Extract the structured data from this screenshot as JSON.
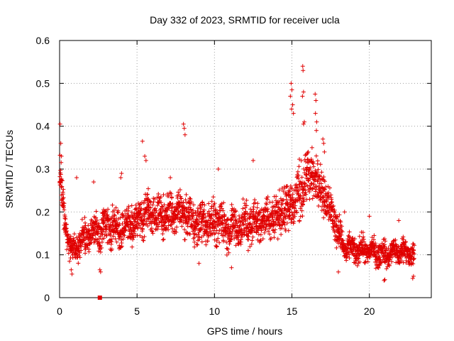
{
  "chart_data": {
    "type": "scatter",
    "title": "Day 332 of 2023, SRMTID for receiver ucla",
    "xlabel": "GPS time / hours",
    "ylabel": "SRMTID / TECUs",
    "xlim": [
      0,
      24
    ],
    "ylim": [
      0,
      0.6
    ],
    "grid": true,
    "x_ticks": [
      0,
      5,
      10,
      15,
      20
    ],
    "x_tick_labels": [
      "0",
      "5",
      "10",
      "15",
      "20"
    ],
    "y_ticks": [
      0,
      0.1,
      0.2,
      0.3,
      0.4,
      0.5,
      0.6
    ],
    "y_tick_labels": [
      "0",
      "0.1",
      "0.2",
      "0.3",
      "0.4",
      "0.5",
      "0.6"
    ],
    "marker": "+",
    "color": "#e00000",
    "time_range": [
      0,
      22.9
    ],
    "envelope": {
      "hours": [
        0,
        0.15,
        0.4,
        0.8,
        1.5,
        2.0,
        3.0,
        4.0,
        5.0,
        5.5,
        6.5,
        8.0,
        9.0,
        10.0,
        11.0,
        12.0,
        13.0,
        14.0,
        14.8,
        15.2,
        15.7,
        16.3,
        17.0,
        17.7,
        18.3,
        19.0,
        20.0,
        21.0,
        22.0,
        22.9
      ],
      "center": [
        0.28,
        0.24,
        0.16,
        0.11,
        0.13,
        0.15,
        0.17,
        0.16,
        0.18,
        0.2,
        0.19,
        0.2,
        0.17,
        0.18,
        0.16,
        0.17,
        0.18,
        0.19,
        0.22,
        0.22,
        0.26,
        0.29,
        0.25,
        0.19,
        0.12,
        0.11,
        0.11,
        0.1,
        0.11,
        0.1
      ],
      "spread": [
        0.07,
        0.06,
        0.04,
        0.03,
        0.04,
        0.04,
        0.05,
        0.04,
        0.05,
        0.05,
        0.05,
        0.05,
        0.05,
        0.05,
        0.05,
        0.05,
        0.05,
        0.05,
        0.07,
        0.07,
        0.07,
        0.06,
        0.05,
        0.05,
        0.03,
        0.03,
        0.03,
        0.03,
        0.03,
        0.03
      ]
    },
    "peaks": [
      {
        "x": 0.03,
        "y": 0.405
      },
      {
        "x": 0.08,
        "y": 0.36
      },
      {
        "x": 0.12,
        "y": 0.33
      },
      {
        "x": 5.35,
        "y": 0.365
      },
      {
        "x": 5.5,
        "y": 0.33
      },
      {
        "x": 5.58,
        "y": 0.32
      },
      {
        "x": 8.0,
        "y": 0.405
      },
      {
        "x": 8.05,
        "y": 0.395
      },
      {
        "x": 8.1,
        "y": 0.38
      },
      {
        "x": 14.95,
        "y": 0.5
      },
      {
        "x": 15.0,
        "y": 0.485
      },
      {
        "x": 14.9,
        "y": 0.47
      },
      {
        "x": 15.05,
        "y": 0.45
      },
      {
        "x": 14.98,
        "y": 0.44
      },
      {
        "x": 15.1,
        "y": 0.43
      },
      {
        "x": 15.7,
        "y": 0.54
      },
      {
        "x": 15.72,
        "y": 0.53
      },
      {
        "x": 15.75,
        "y": 0.48
      },
      {
        "x": 15.68,
        "y": 0.47
      },
      {
        "x": 15.8,
        "y": 0.41
      },
      {
        "x": 15.75,
        "y": 0.405
      },
      {
        "x": 16.05,
        "y": 0.34
      },
      {
        "x": 16.3,
        "y": 0.35
      },
      {
        "x": 16.5,
        "y": 0.475
      },
      {
        "x": 16.55,
        "y": 0.46
      },
      {
        "x": 16.52,
        "y": 0.43
      },
      {
        "x": 16.6,
        "y": 0.41
      },
      {
        "x": 16.58,
        "y": 0.39
      },
      {
        "x": 17.0,
        "y": 0.37
      },
      {
        "x": 17.05,
        "y": 0.36
      },
      {
        "x": 17.1,
        "y": 0.34
      },
      {
        "x": 14.7,
        "y": 0.26
      },
      {
        "x": 14.8,
        "y": 0.25
      },
      {
        "x": 4.0,
        "y": 0.29
      },
      {
        "x": 3.95,
        "y": 0.28
      },
      {
        "x": 1.1,
        "y": 0.28
      },
      {
        "x": 2.2,
        "y": 0.27
      },
      {
        "x": 7.15,
        "y": 0.28
      },
      {
        "x": 10.25,
        "y": 0.3
      },
      {
        "x": 12.5,
        "y": 0.32
      },
      {
        "x": 18.4,
        "y": 0.2
      },
      {
        "x": 20.0,
        "y": 0.19
      },
      {
        "x": 21.9,
        "y": 0.18
      }
    ],
    "lows": [
      {
        "x": 0.8,
        "y": 0.055
      },
      {
        "x": 0.75,
        "y": 0.065
      },
      {
        "x": 2.6,
        "y": 0.065
      },
      {
        "x": 2.65,
        "y": 0.06
      },
      {
        "x": 21.0,
        "y": 0.042
      },
      {
        "x": 20.95,
        "y": 0.04
      },
      {
        "x": 22.8,
        "y": 0.045
      },
      {
        "x": 22.85,
        "y": 0.05
      },
      {
        "x": 18.0,
        "y": 0.06
      },
      {
        "x": 9.0,
        "y": 0.08
      },
      {
        "x": 11.1,
        "y": 0.07
      }
    ],
    "zero_marker": {
      "x": 2.6,
      "y": 0.0
    }
  }
}
